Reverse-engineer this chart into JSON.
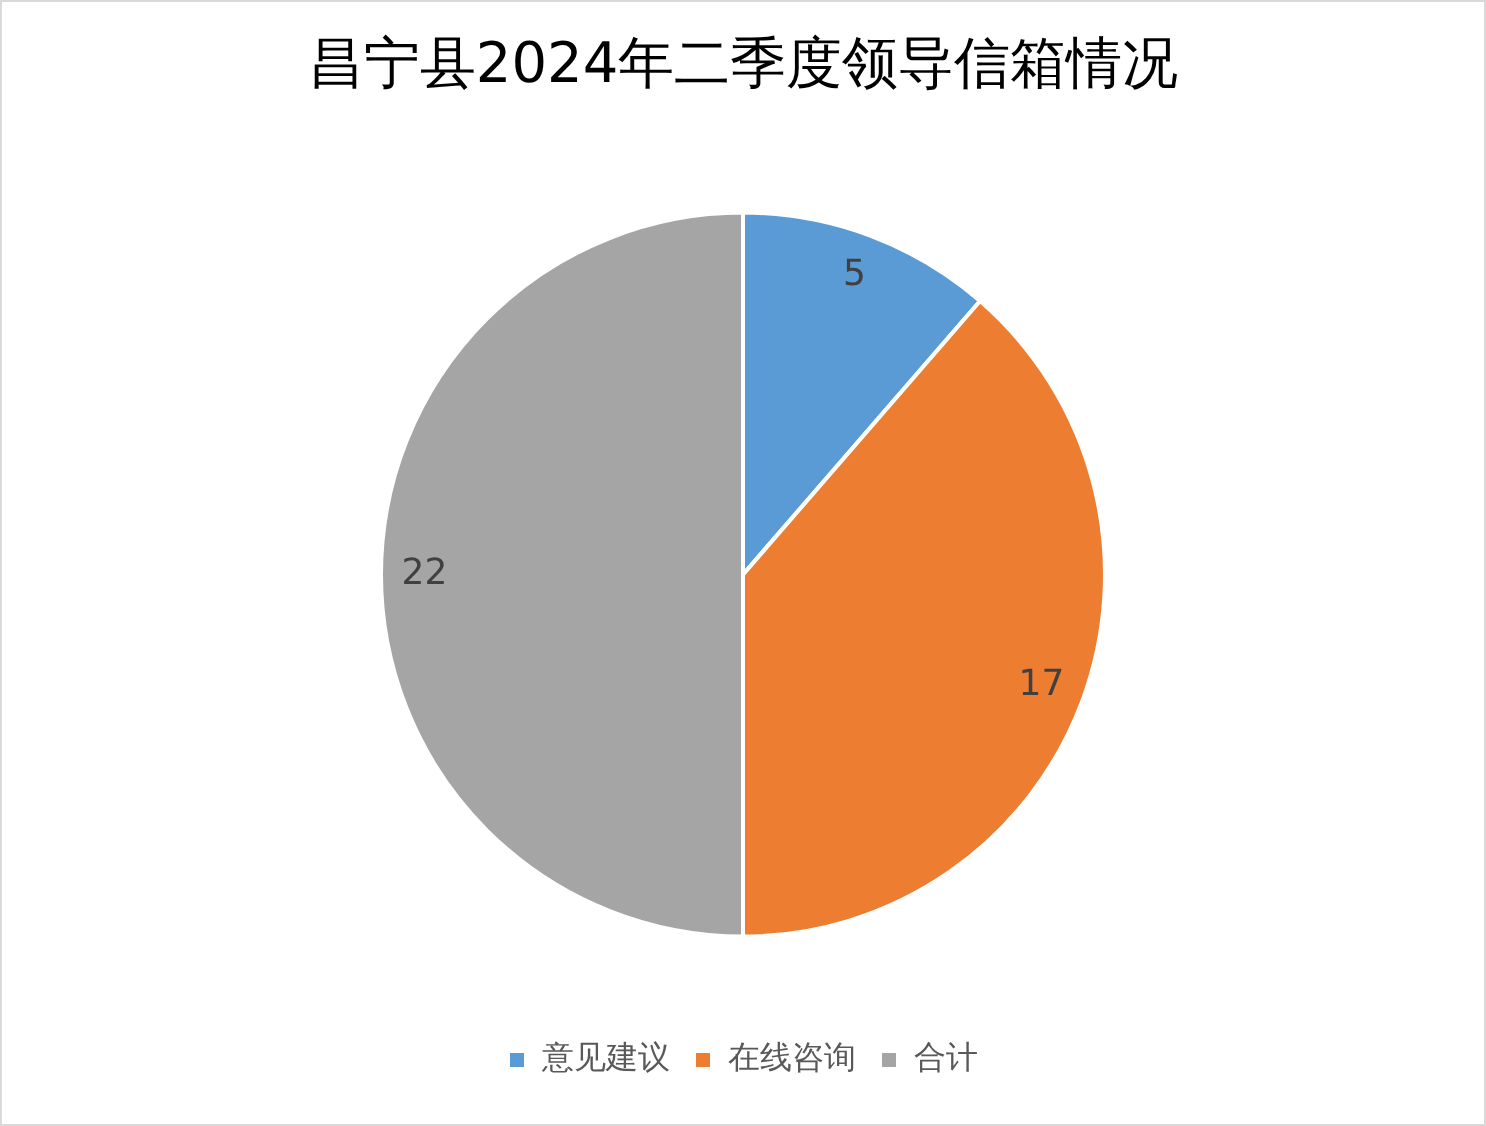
{
  "chart_data": {
    "type": "pie",
    "title": "昌宁县2024年二季度领导信箱情况",
    "categories": [
      "意见建议",
      "在线咨询",
      "合计"
    ],
    "values": [
      5,
      17,
      22
    ],
    "colors": [
      "#5b9bd5",
      "#ed7d31",
      "#a5a5a5"
    ],
    "data_labels": true,
    "legend": "bottom"
  }
}
